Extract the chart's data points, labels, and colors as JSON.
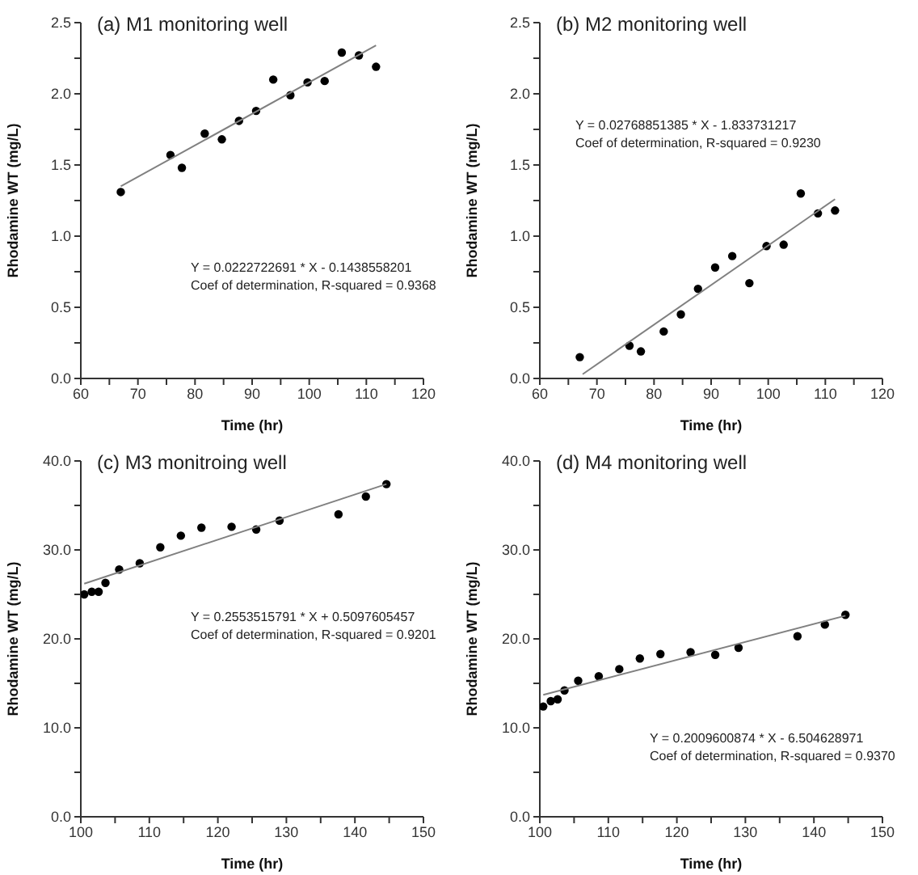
{
  "chart_data": [
    {
      "type": "scatter",
      "title": "(a) M1 monitoring well",
      "xlabel": "Time (hr)",
      "ylabel": "Rhodamine WT (mg/L)",
      "annotations": [
        "Y = 0.0222722691 * X - 0.1438558201",
        "Coef of determination, R-squared = 0.9368"
      ],
      "xlim": [
        60,
        120
      ],
      "xticks": [
        60,
        {
          "value": 65,
          "label": null
        },
        70,
        {
          "value": 75,
          "label": null
        },
        80,
        {
          "value": 85,
          "label": null
        },
        90,
        {
          "value": 95,
          "label": null
        },
        100,
        {
          "value": 105,
          "label": null
        },
        110,
        {
          "value": 115,
          "label": null
        },
        120
      ],
      "ylim": [
        0,
        2.5
      ],
      "yticks": [
        {
          "value": 0,
          "label": "0.0"
        },
        {
          "value": 0.25,
          "label": null
        },
        {
          "value": 0.5,
          "label": "0.5"
        },
        {
          "value": 0.75,
          "label": null
        },
        {
          "value": 1,
          "label": "1.0"
        },
        {
          "value": 1.25,
          "label": null
        },
        {
          "value": 1.5,
          "label": "1.5"
        },
        {
          "value": 1.75,
          "label": null
        },
        {
          "value": 2,
          "label": "2.0"
        },
        {
          "value": 2.25,
          "label": null
        },
        {
          "value": 2.5,
          "label": "2.5"
        }
      ],
      "series": [
        {
          "marker": "circle",
          "color": "#000000",
          "x": [
            67,
            75.7,
            77.7,
            81.7,
            84.7,
            87.7,
            90.7,
            93.7,
            96.7,
            99.7,
            102.7,
            105.7,
            108.7,
            111.7
          ],
          "values": [
            1.31,
            1.57,
            1.48,
            1.72,
            1.68,
            1.81,
            1.88,
            2.1,
            1.99,
            2.08,
            2.09,
            2.29,
            2.27,
            2.19
          ]
        },
        {
          "type": "line",
          "color": "#808080",
          "x": [
            67,
            111.7
          ],
          "values": [
            1.35,
            2.34
          ]
        }
      ]
    },
    {
      "type": "scatter",
      "title": "(b) M2 monitoring well",
      "xlabel": "Time (hr)",
      "ylabel": "Rhodamine WT (mg/L)",
      "annotations": [
        "Y = 0.02768851385 * X - 1.833731217",
        "Coef of determination, R-squared = 0.9230"
      ],
      "xlim": [
        60,
        120
      ],
      "xticks": [
        60,
        {
          "value": 65,
          "label": null
        },
        70,
        {
          "value": 75,
          "label": null
        },
        80,
        {
          "value": 85,
          "label": null
        },
        90,
        {
          "value": 95,
          "label": null
        },
        100,
        {
          "value": 105,
          "label": null
        },
        110,
        {
          "value": 115,
          "label": null
        },
        120
      ],
      "ylim": [
        0,
        2.5
      ],
      "yticks": [
        {
          "value": 0,
          "label": "0.0"
        },
        {
          "value": 0.25,
          "label": null
        },
        {
          "value": 0.5,
          "label": "0.5"
        },
        {
          "value": 0.75,
          "label": null
        },
        {
          "value": 1,
          "label": "1.0"
        },
        {
          "value": 1.25,
          "label": null
        },
        {
          "value": 1.5,
          "label": "1.5"
        },
        {
          "value": 1.75,
          "label": null
        },
        {
          "value": 2,
          "label": "2.0"
        },
        {
          "value": 2.25,
          "label": null
        },
        {
          "value": 2.5,
          "label": "2.5"
        }
      ],
      "series": [
        {
          "marker": "circle",
          "color": "#000000",
          "x": [
            67,
            75.7,
            77.7,
            81.7,
            84.7,
            87.7,
            90.7,
            93.7,
            96.7,
            99.7,
            102.7,
            105.7,
            108.7,
            111.7
          ],
          "values": [
            0.15,
            0.23,
            0.19,
            0.33,
            0.45,
            0.63,
            0.78,
            0.86,
            0.67,
            0.93,
            0.94,
            1.3,
            1.16,
            1.18
          ]
        },
        {
          "type": "line",
          "color": "#808080",
          "x": [
            67.5,
            111.7
          ],
          "values": [
            0.03,
            1.26
          ]
        }
      ]
    },
    {
      "type": "scatter",
      "title": "(c) M3 monitroing well",
      "xlabel": "Time (hr)",
      "ylabel": "Rhodamine WT (mg/L)",
      "annotations": [
        "Y = 0.2553515791 * X + 0.5097605457",
        "Coef of determination, R-squared = 0.9201"
      ],
      "xlim": [
        100,
        150
      ],
      "xticks": [
        100,
        {
          "value": 105,
          "label": null
        },
        110,
        {
          "value": 115,
          "label": null
        },
        120,
        {
          "value": 125,
          "label": null
        },
        130,
        {
          "value": 135,
          "label": null
        },
        140,
        {
          "value": 145,
          "label": null
        },
        150
      ],
      "ylim": [
        0,
        40
      ],
      "yticks": [
        {
          "value": 0,
          "label": "0.0"
        },
        {
          "value": 5,
          "label": null
        },
        {
          "value": 10,
          "label": "10.0"
        },
        {
          "value": 15,
          "label": null
        },
        {
          "value": 20,
          "label": "20.0"
        },
        {
          "value": 25,
          "label": null
        },
        {
          "value": 30,
          "label": "30.0"
        },
        {
          "value": 35,
          "label": null
        },
        {
          "value": 40,
          "label": "40.0"
        }
      ],
      "series": [
        {
          "marker": "circle",
          "color": "#000000",
          "x": [
            100.5,
            101.6,
            102.6,
            103.6,
            105.6,
            108.6,
            111.6,
            114.6,
            117.6,
            122,
            125.6,
            129,
            137.6,
            141.6,
            144.6
          ],
          "values": [
            25,
            25.3,
            25.3,
            26.3,
            27.8,
            28.5,
            30.3,
            31.6,
            32.5,
            32.6,
            32.3,
            33.3,
            34,
            36,
            37.4
          ]
        },
        {
          "type": "line",
          "color": "#808080",
          "x": [
            100.5,
            144.6
          ],
          "values": [
            26.2,
            37.4
          ]
        }
      ]
    },
    {
      "type": "scatter",
      "title": "(d) M4 monitoring well",
      "xlabel": "Time (hr)",
      "ylabel": "Rhodamine WT (mg/L)",
      "annotations": [
        "Y = 0.2009600874 * X - 6.504628971",
        "Coef of determination, R-squared = 0.9370"
      ],
      "xlim": [
        100,
        150
      ],
      "xticks": [
        100,
        {
          "value": 105,
          "label": null
        },
        110,
        {
          "value": 115,
          "label": null
        },
        120,
        {
          "value": 125,
          "label": null
        },
        130,
        {
          "value": 135,
          "label": null
        },
        140,
        {
          "value": 145,
          "label": null
        },
        150
      ],
      "ylim": [
        0,
        40
      ],
      "yticks": [
        {
          "value": 0,
          "label": "0.0"
        },
        {
          "value": 5,
          "label": null
        },
        {
          "value": 10,
          "label": "10.0"
        },
        {
          "value": 15,
          "label": null
        },
        {
          "value": 20,
          "label": "20.0"
        },
        {
          "value": 25,
          "label": null
        },
        {
          "value": 30,
          "label": "30.0"
        },
        {
          "value": 35,
          "label": null
        },
        {
          "value": 40,
          "label": "40.0"
        }
      ],
      "series": [
        {
          "marker": "circle",
          "color": "#000000",
          "x": [
            100.5,
            101.6,
            102.6,
            103.6,
            105.6,
            108.6,
            111.6,
            114.6,
            117.6,
            122,
            125.6,
            129,
            137.6,
            141.6,
            144.6
          ],
          "values": [
            12.4,
            13,
            13.2,
            14.2,
            15.3,
            15.8,
            16.6,
            17.8,
            18.3,
            18.5,
            18.2,
            19,
            20.3,
            21.6,
            22.7
          ]
        },
        {
          "type": "line",
          "color": "#808080",
          "x": [
            100.5,
            144.6
          ],
          "values": [
            13.7,
            22.6
          ]
        }
      ]
    }
  ]
}
